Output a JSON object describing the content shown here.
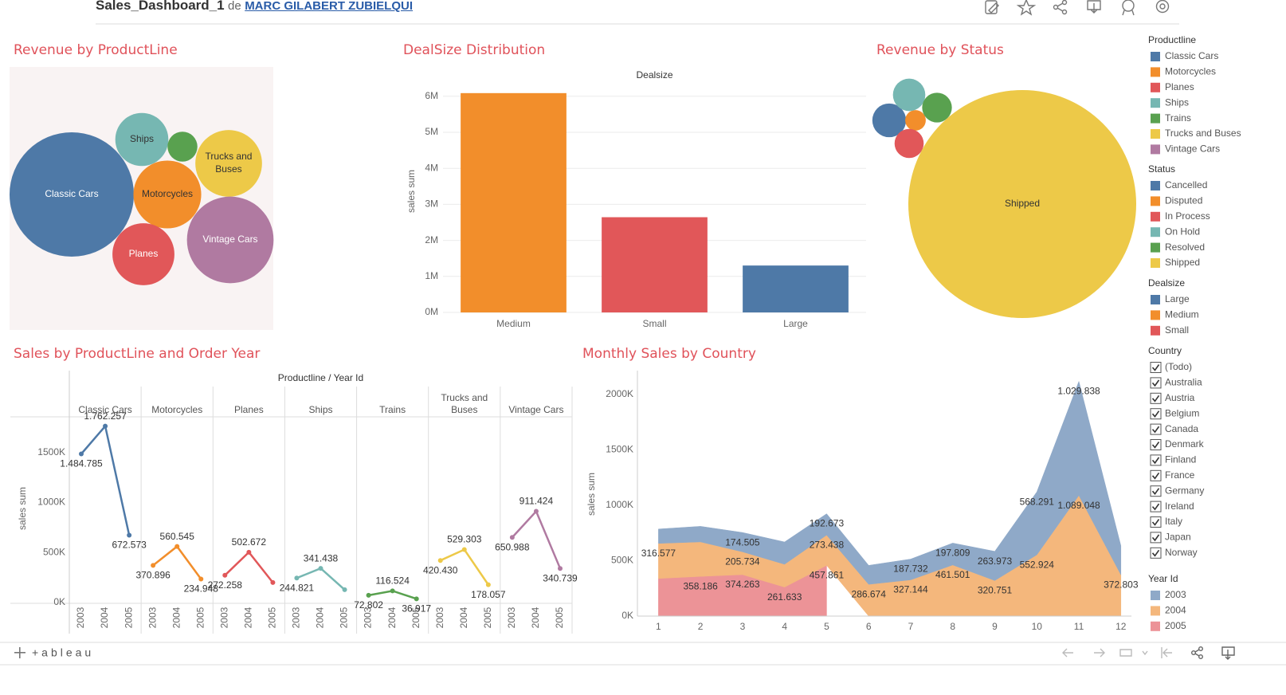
{
  "header": {
    "title": "Sales_Dashboard_1",
    "by": "de",
    "author": "MARC GILABERT ZUBIELQUI"
  },
  "chart_data": [
    {
      "type": "bubble",
      "title": "Revenue by ProductLine",
      "categories": [
        "Classic Cars",
        "Ships",
        null,
        "Trucks and Buses",
        "Motorcycles",
        "Planes",
        "Vintage Cars"
      ],
      "values": [
        3919616,
        714437,
        226243,
        1127790,
        1166389,
        975004,
        1903151
      ],
      "colors": [
        "#4e79a7",
        "#76b7b2",
        "#59a14f",
        "#edc948",
        "#f28e2b",
        "#e15759",
        "#b07aa1"
      ]
    },
    {
      "type": "bar",
      "title": "DealSize Distribution",
      "header": "Dealsize",
      "ylabel": "sales sum",
      "categories": [
        "Medium",
        "Small",
        "Large"
      ],
      "values": [
        6087432,
        2643077,
        1302119
      ],
      "colors": [
        "#f28e2b",
        "#e15759",
        "#4e79a7"
      ],
      "ylim": [
        0,
        6460000
      ],
      "yticks": [
        {
          "value": 0,
          "label": "0M"
        },
        {
          "value": 1000000,
          "label": "1M"
        },
        {
          "value": 2000000,
          "label": "2M"
        },
        {
          "value": 3000000,
          "label": "3M"
        },
        {
          "value": 4000000,
          "label": "4M"
        },
        {
          "value": 5000000,
          "label": "5M"
        },
        {
          "value": 6000000,
          "label": "6M"
        }
      ],
      "grid": true
    },
    {
      "type": "bubble",
      "title": "Revenue by Status",
      "categories": [
        null,
        null,
        null,
        null,
        null,
        "Shipped"
      ],
      "values": [
        194487,
        72212,
        144730,
        178979,
        150718,
        8865094
      ],
      "colors": [
        "#4e79a7",
        "#f28e2b",
        "#e15759",
        "#76b7b2",
        "#59a14f",
        "#edc948"
      ]
    },
    {
      "type": "line-panels",
      "title": "Sales by ProductLine and Order Year",
      "header": "Productline / Year Id",
      "ylabel": "sales sum",
      "x": [
        "2003",
        "2004",
        "2005"
      ],
      "ylim": [
        0,
        1855000
      ],
      "yticks": [
        {
          "value": 0,
          "label": "0K"
        },
        {
          "value": 500000,
          "label": "500K"
        },
        {
          "value": 1000000,
          "label": "1000K"
        },
        {
          "value": 1500000,
          "label": "1500K"
        }
      ],
      "series": [
        {
          "name": "Classic Cars",
          "color": "#4e79a7",
          "values": [
            1484785,
            1762257,
            672573
          ],
          "value_labels": [
            "1.484.785",
            "1.762.257",
            "672.573"
          ]
        },
        {
          "name": "Motorcycles",
          "color": "#f28e2b",
          "values": [
            370896,
            560545,
            234948
          ],
          "value_labels": [
            "370.896",
            "560.545",
            "234.948"
          ]
        },
        {
          "name": "Planes",
          "color": "#e15759",
          "values": [
            272258,
            502672,
            200074
          ],
          "value_labels": [
            "272.258",
            "502.672",
            null
          ]
        },
        {
          "name": "Ships",
          "color": "#76b7b2",
          "values": [
            244821,
            341438,
            128178
          ],
          "value_labels": [
            "244.821",
            "341.438",
            null
          ]
        },
        {
          "name": "Trains",
          "color": "#59a14f",
          "values": [
            72802,
            116524,
            36917
          ],
          "value_labels": [
            "72.802",
            "116.524",
            "36.917"
          ]
        },
        {
          "name": "Trucks and Buses",
          "color": "#edc948",
          "values": [
            420430,
            529303,
            178057
          ],
          "value_labels": [
            "420.430",
            "529.303",
            "178.057"
          ]
        },
        {
          "name": "Vintage Cars",
          "color": "#b07aa1",
          "values": [
            650988,
            911424,
            340739
          ],
          "value_labels": [
            "650.988",
            "911.424",
            "340.739"
          ]
        }
      ]
    },
    {
      "type": "area",
      "title": "Monthly Sales by Country",
      "ylabel": "sales sum",
      "stacked": true,
      "x": [
        1,
        2,
        3,
        4,
        5,
        6,
        7,
        8,
        9,
        10,
        11,
        12
      ],
      "xlim": [
        0.5,
        12.25
      ],
      "xticks": [
        1,
        2,
        3,
        4,
        5,
        6,
        7,
        8,
        9,
        10,
        11,
        12
      ],
      "ylim": [
        0,
        2216000
      ],
      "yticks": [
        {
          "value": 0,
          "label": "0K"
        },
        {
          "value": 500000,
          "label": "500K"
        },
        {
          "value": 1000000,
          "label": "1000K"
        },
        {
          "value": 1500000,
          "label": "1500K"
        },
        {
          "value": 2000000,
          "label": "2000K"
        }
      ],
      "series": [
        {
          "name": "2003",
          "color": "#8fa9c8",
          "values": [
            129754,
            140836,
            174505,
            201610,
            192673,
            171178,
            187732,
            197809,
            263973,
            568291,
            1029838,
            261876
          ],
          "value_labels": [
            null,
            null,
            "174.505",
            null,
            "192.673",
            null,
            "187.732",
            "197.809",
            "263.973",
            "568.291",
            "1.029.838",
            null
          ]
        },
        {
          "name": "2004",
          "color": "#f4b77c",
          "values": [
            316577,
            311420,
            205734,
            206148,
            273438,
            286674,
            327144,
            461501,
            320751,
            552924,
            1089048,
            372803
          ],
          "value_labels": [
            "316.577",
            null,
            "205.734",
            null,
            "273.438",
            "286.674",
            "327.144",
            "461.501",
            "320.751",
            "552.924",
            "1.089.048",
            "372.803"
          ]
        },
        {
          "name": "2005",
          "color": "#ec9397",
          "values": [
            339543,
            358186,
            374263,
            261633,
            457861,
            null,
            null,
            null,
            null,
            null,
            null,
            null
          ],
          "value_labels": [
            null,
            "358.186",
            "374.263",
            "261.633",
            "457.861",
            null,
            null,
            null,
            null,
            null,
            null,
            null
          ]
        }
      ]
    }
  ],
  "legends": [
    {
      "title": "Productline",
      "items": [
        {
          "name": "Classic Cars",
          "color": "#4e79a7"
        },
        {
          "name": "Motorcycles",
          "color": "#f28e2b"
        },
        {
          "name": "Planes",
          "color": "#e15759"
        },
        {
          "name": "Ships",
          "color": "#76b7b2"
        },
        {
          "name": "Trains",
          "color": "#59a14f"
        },
        {
          "name": "Trucks and Buses",
          "color": "#edc948"
        },
        {
          "name": "Vintage Cars",
          "color": "#b07aa1"
        }
      ]
    },
    {
      "title": "Status",
      "items": [
        {
          "name": "Cancelled",
          "color": "#4e79a7"
        },
        {
          "name": "Disputed",
          "color": "#f28e2b"
        },
        {
          "name": "In Process",
          "color": "#e15759"
        },
        {
          "name": "On Hold",
          "color": "#76b7b2"
        },
        {
          "name": "Resolved",
          "color": "#59a14f"
        },
        {
          "name": "Shipped",
          "color": "#edc948"
        }
      ]
    },
    {
      "title": "Dealsize",
      "items": [
        {
          "name": "Large",
          "color": "#4e79a7"
        },
        {
          "name": "Medium",
          "color": "#f28e2b"
        },
        {
          "name": "Small",
          "color": "#e15759"
        }
      ]
    },
    {
      "title": "Country",
      "filter": true,
      "items": [
        {
          "name": "(Todo)",
          "checked": true
        },
        {
          "name": "Australia",
          "checked": true
        },
        {
          "name": "Austria",
          "checked": true
        },
        {
          "name": "Belgium",
          "checked": true
        },
        {
          "name": "Canada",
          "checked": true
        },
        {
          "name": "Denmark",
          "checked": true
        },
        {
          "name": "Finland",
          "checked": true
        },
        {
          "name": "France",
          "checked": true
        },
        {
          "name": "Germany",
          "checked": true
        },
        {
          "name": "Ireland",
          "checked": true
        },
        {
          "name": "Italy",
          "checked": true
        },
        {
          "name": "Japan",
          "checked": true
        },
        {
          "name": "Norway",
          "checked": true
        }
      ]
    },
    {
      "title": "Year Id",
      "items": [
        {
          "name": "2003",
          "color": "#8fa9c8"
        },
        {
          "name": "2004",
          "color": "#f4b77c"
        },
        {
          "name": "2005",
          "color": "#ec9397"
        }
      ]
    }
  ],
  "footer": {
    "brand": "+ableau"
  }
}
